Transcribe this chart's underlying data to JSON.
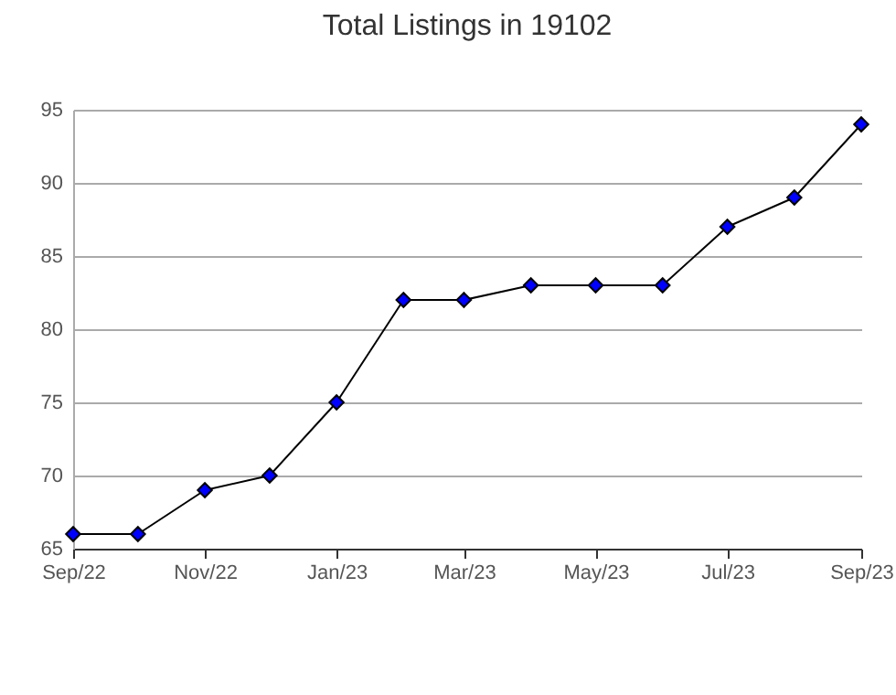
{
  "chart_data": {
    "type": "line",
    "title": "Total Listings in 19102",
    "x": [
      "2022-09",
      "2022-10",
      "2022-11",
      "2022-12",
      "2023-01",
      "2023-02",
      "2023-03",
      "2023-04",
      "2023-05",
      "2023-06",
      "2023-07",
      "2023-08",
      "2023-09"
    ],
    "series": [
      {
        "color": "#0000ff",
        "values": [
          66,
          66,
          69,
          70,
          75,
          82,
          82,
          83,
          83,
          83,
          87,
          89,
          94
        ]
      }
    ],
    "xlim": [
      "2022-09",
      "2023-09"
    ],
    "xticks": [
      {
        "value": "2022-09",
        "label": "Sep/22"
      },
      {
        "value": "2022-11",
        "label": "Nov/22"
      },
      {
        "value": "2023-01",
        "label": "Jan/23"
      },
      {
        "value": "2023-03",
        "label": "Mar/23"
      },
      {
        "value": "2023-05",
        "label": "May/23"
      },
      {
        "value": "2023-07",
        "label": "Jul/23"
      },
      {
        "value": "2023-09",
        "label": "Sep/23"
      }
    ],
    "ylim": [
      65,
      95
    ],
    "yticks": [
      65,
      70,
      75,
      80,
      85,
      90,
      95
    ],
    "grid": "y",
    "marker": "diamond",
    "line_style": "solid"
  }
}
